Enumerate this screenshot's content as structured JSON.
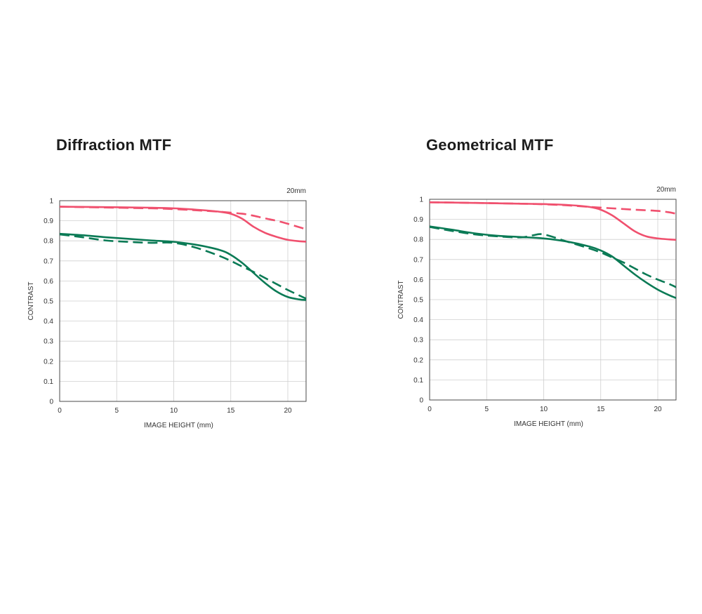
{
  "chart_data": [
    {
      "type": "line",
      "title": "Diffraction MTF",
      "focal_label": "20mm",
      "xlabel": "IMAGE HEIGHT (mm)",
      "ylabel": "CONTRAST",
      "xlim": [
        0,
        21.6
      ],
      "ylim": [
        0,
        1
      ],
      "xticks": [
        0,
        5,
        10,
        15,
        20
      ],
      "xtick_labels": [
        "0",
        "5",
        "10",
        "15",
        "20"
      ],
      "yticks": [
        0,
        0.1,
        0.2,
        0.3,
        0.4,
        0.5,
        0.6,
        0.7,
        0.8,
        0.9,
        1
      ],
      "ytick_labels": [
        "0",
        "0.1",
        "0.2",
        "0.3",
        "0.4",
        "0.5",
        "0.6",
        "0.7",
        "0.8",
        "0.9",
        "1"
      ],
      "grid": true,
      "series": [
        {
          "color": "#f0506e",
          "dash": false,
          "x": [
            0,
            4,
            8,
            10,
            12,
            14,
            15,
            16,
            17,
            18,
            19,
            20,
            21,
            21.6
          ],
          "y": [
            0.97,
            0.968,
            0.965,
            0.962,
            0.955,
            0.945,
            0.935,
            0.91,
            0.87,
            0.84,
            0.82,
            0.805,
            0.798,
            0.796
          ]
        },
        {
          "color": "#f0506e",
          "dash": true,
          "x": [
            0,
            4,
            8,
            10,
            12,
            14,
            16,
            17,
            18,
            19,
            20,
            21,
            21.6
          ],
          "y": [
            0.97,
            0.966,
            0.962,
            0.958,
            0.952,
            0.945,
            0.935,
            0.925,
            0.912,
            0.9,
            0.885,
            0.868,
            0.858
          ]
        },
        {
          "color": "#0a7a55",
          "dash": false,
          "x": [
            0,
            2,
            4,
            6,
            8,
            10,
            12,
            14,
            15,
            16,
            17,
            18,
            19,
            20,
            21,
            21.6
          ],
          "y": [
            0.835,
            0.828,
            0.818,
            0.81,
            0.802,
            0.795,
            0.78,
            0.755,
            0.73,
            0.69,
            0.64,
            0.59,
            0.548,
            0.52,
            0.508,
            0.505
          ]
        },
        {
          "color": "#0a7a55",
          "dash": true,
          "x": [
            0,
            2,
            4,
            6,
            8,
            10,
            12,
            14,
            15,
            16,
            17,
            18,
            19,
            20,
            21,
            21.6
          ],
          "y": [
            0.832,
            0.818,
            0.802,
            0.795,
            0.79,
            0.79,
            0.765,
            0.725,
            0.7,
            0.672,
            0.645,
            0.615,
            0.585,
            0.555,
            0.528,
            0.512
          ]
        }
      ]
    },
    {
      "type": "line",
      "title": "Geometrical MTF",
      "focal_label": "20mm",
      "xlabel": "IMAGE HEIGHT (mm)",
      "ylabel": "CONTRAST",
      "xlim": [
        0,
        21.6
      ],
      "ylim": [
        0,
        1
      ],
      "xticks": [
        0,
        5,
        10,
        15,
        20
      ],
      "xtick_labels": [
        "0",
        "5",
        "10",
        "15",
        "20"
      ],
      "yticks": [
        0,
        0.1,
        0.2,
        0.3,
        0.4,
        0.5,
        0.6,
        0.7,
        0.8,
        0.9,
        1
      ],
      "ytick_labels": [
        "0",
        "0.1",
        "0.2",
        "0.3",
        "0.4",
        "0.5",
        "0.6",
        "0.7",
        "0.8",
        "0.9",
        "1"
      ],
      "grid": true,
      "series": [
        {
          "color": "#f0506e",
          "dash": false,
          "x": [
            0,
            4,
            8,
            10,
            12,
            14,
            15,
            16,
            17,
            18,
            19,
            20,
            21,
            21.6
          ],
          "y": [
            0.985,
            0.982,
            0.978,
            0.976,
            0.972,
            0.962,
            0.948,
            0.92,
            0.88,
            0.84,
            0.815,
            0.805,
            0.8,
            0.798
          ]
        },
        {
          "color": "#f0506e",
          "dash": true,
          "x": [
            0,
            4,
            8,
            10,
            12,
            14,
            16,
            18,
            20,
            21,
            21.6
          ],
          "y": [
            0.985,
            0.982,
            0.978,
            0.975,
            0.97,
            0.962,
            0.955,
            0.948,
            0.942,
            0.935,
            0.928
          ]
        },
        {
          "color": "#0a7a55",
          "dash": false,
          "x": [
            0,
            2,
            4,
            6,
            8,
            10,
            12,
            14,
            15,
            16,
            17,
            18,
            19,
            20,
            21,
            21.6
          ],
          "y": [
            0.865,
            0.848,
            0.83,
            0.818,
            0.812,
            0.805,
            0.79,
            0.765,
            0.745,
            0.715,
            0.67,
            0.625,
            0.585,
            0.55,
            0.522,
            0.508
          ]
        },
        {
          "color": "#0a7a55",
          "dash": true,
          "x": [
            0,
            2,
            4,
            6,
            8,
            9,
            10,
            12,
            14,
            15,
            16,
            17,
            18,
            19,
            20,
            21,
            21.6
          ],
          "y": [
            0.862,
            0.842,
            0.825,
            0.815,
            0.81,
            0.82,
            0.825,
            0.79,
            0.755,
            0.735,
            0.71,
            0.685,
            0.655,
            0.625,
            0.6,
            0.578,
            0.562
          ]
        }
      ]
    }
  ]
}
